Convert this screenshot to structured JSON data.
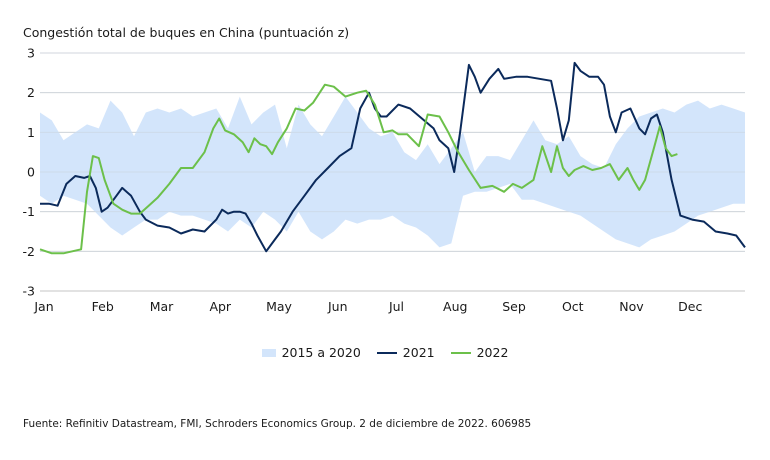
{
  "chart_data": {
    "type": "line",
    "title": "Congestión total de buques en China (puntuación z)",
    "source": "Fuente: Refinitiv Datastream, FMI, Schroders Economics Group. 2 de diciembre de 2022. 606985",
    "xlabel": "",
    "ylabel": "",
    "ylim": [
      -3,
      3
    ],
    "yticks": [
      "3",
      "2",
      "1",
      "0",
      "-1",
      "-2",
      "-3"
    ],
    "ytick_values": [
      3,
      2,
      1,
      0,
      -1,
      -2,
      -3
    ],
    "xticks": [
      "Jan",
      "Feb",
      "Mar",
      "Apr",
      "May",
      "Jun",
      "Jul",
      "Aug",
      "Sep",
      "Oct",
      "Nov",
      "Dec"
    ],
    "grid": true,
    "legend_position": "bottom",
    "colors": {
      "band": "#d3e5fb",
      "y2021": "#0b2a5b",
      "y2022": "#6cc04a",
      "grid": "#d9d9d9"
    },
    "band": {
      "name": "2015 a 2020",
      "x": [
        0,
        0.2,
        0.4,
        0.6,
        0.8,
        1.0,
        1.2,
        1.4,
        1.6,
        1.8,
        2.0,
        2.2,
        2.4,
        2.6,
        2.8,
        3.0,
        3.2,
        3.4,
        3.6,
        3.8,
        4.0,
        4.2,
        4.4,
        4.6,
        4.8,
        5.0,
        5.2,
        5.4,
        5.6,
        5.8,
        6.0,
        6.2,
        6.4,
        6.6,
        6.8,
        7.0,
        7.2,
        7.4,
        7.6,
        7.8,
        8.0,
        8.2,
        8.4,
        8.6,
        8.8,
        9.0,
        9.2,
        9.4,
        9.6,
        9.8,
        10.0,
        10.2,
        10.4,
        10.6,
        10.8,
        11.0,
        11.2,
        11.4,
        11.6,
        11.8,
        12.0
      ],
      "upper": [
        1.5,
        1.3,
        0.8,
        1.0,
        1.2,
        1.1,
        1.8,
        1.5,
        0.9,
        1.5,
        1.6,
        1.5,
        1.6,
        1.4,
        1.5,
        1.6,
        1.1,
        1.9,
        1.2,
        1.5,
        1.7,
        0.6,
        1.7,
        1.2,
        0.9,
        1.4,
        1.9,
        1.5,
        1.1,
        0.9,
        1.0,
        0.5,
        0.3,
        0.7,
        0.2,
        0.6,
        1.0,
        0.0,
        0.4,
        0.4,
        0.3,
        0.8,
        1.3,
        0.8,
        0.7,
        0.9,
        0.4,
        0.2,
        0.1,
        0.7,
        1.1,
        1.4,
        1.5,
        1.6,
        1.5,
        1.7,
        1.8,
        1.6,
        1.7,
        1.6,
        1.5
      ],
      "lower": [
        -0.6,
        -0.8,
        -0.6,
        -0.7,
        -0.8,
        -1.1,
        -1.4,
        -1.6,
        -1.4,
        -1.2,
        -1.2,
        -1.0,
        -1.1,
        -1.1,
        -1.2,
        -1.3,
        -1.5,
        -1.2,
        -1.4,
        -1.0,
        -1.2,
        -1.5,
        -1.0,
        -1.5,
        -1.7,
        -1.5,
        -1.2,
        -1.3,
        -1.2,
        -1.2,
        -1.1,
        -1.3,
        -1.4,
        -1.6,
        -1.9,
        -1.8,
        -0.6,
        -0.5,
        -0.5,
        -0.4,
        -0.3,
        -0.7,
        -0.7,
        -0.8,
        -0.9,
        -1.0,
        -1.1,
        -1.3,
        -1.5,
        -1.7,
        -1.8,
        -1.9,
        -1.7,
        -1.6,
        -1.5,
        -1.3,
        -1.1,
        -1.0,
        -0.9,
        -0.8,
        -0.8
      ]
    },
    "series": [
      {
        "name": "2021",
        "x": [
          0,
          0.15,
          0.3,
          0.45,
          0.6,
          0.75,
          0.85,
          0.95,
          1.05,
          1.15,
          1.3,
          1.4,
          1.55,
          1.7,
          1.8,
          2.0,
          2.2,
          2.4,
          2.6,
          2.8,
          3.0,
          3.1,
          3.2,
          3.3,
          3.4,
          3.5,
          3.6,
          3.7,
          3.85,
          4.0,
          4.1,
          4.3,
          4.5,
          4.7,
          4.9,
          5.1,
          5.3,
          5.45,
          5.6,
          5.7,
          5.8,
          5.9,
          6.1,
          6.3,
          6.5,
          6.7,
          6.8,
          6.95,
          7.05,
          7.15,
          7.3,
          7.4,
          7.5,
          7.65,
          7.8,
          7.9,
          8.1,
          8.3,
          8.5,
          8.7,
          8.8,
          8.9,
          9.0,
          9.1,
          9.2,
          9.35,
          9.5,
          9.6,
          9.7,
          9.8,
          9.9,
          10.05,
          10.2,
          10.3,
          10.4,
          10.5,
          10.6,
          10.75,
          10.9,
          11.1,
          11.3,
          11.5,
          11.7,
          11.85,
          12.0
        ],
        "values": [
          -0.8,
          -0.8,
          -0.85,
          -0.3,
          -0.1,
          -0.15,
          -0.1,
          -0.4,
          -1.0,
          -0.9,
          -0.6,
          -0.4,
          -0.6,
          -1.0,
          -1.2,
          -1.35,
          -1.4,
          -1.55,
          -1.45,
          -1.5,
          -1.2,
          -0.95,
          -1.05,
          -1.0,
          -1.0,
          -1.05,
          -1.3,
          -1.6,
          -2.0,
          -1.7,
          -1.5,
          -1.0,
          -0.6,
          -0.2,
          0.1,
          0.4,
          0.6,
          1.6,
          2.0,
          1.6,
          1.4,
          1.4,
          1.7,
          1.6,
          1.35,
          1.1,
          0.8,
          0.6,
          0.0,
          1.0,
          2.7,
          2.4,
          2.0,
          2.35,
          2.6,
          2.35,
          2.4,
          2.4,
          2.35,
          2.3,
          1.6,
          0.8,
          1.3,
          2.75,
          2.55,
          2.4,
          2.4,
          2.2,
          1.4,
          1.0,
          1.5,
          1.6,
          1.1,
          0.95,
          1.35,
          1.45,
          1.0,
          -0.2,
          -1.1,
          -1.2,
          -1.25,
          -1.5,
          -1.55,
          -1.6,
          -1.9
        ]
      },
      {
        "name": "2022",
        "x": [
          0,
          0.2,
          0.4,
          0.55,
          0.7,
          0.8,
          0.9,
          1.0,
          1.1,
          1.25,
          1.4,
          1.55,
          1.7,
          1.85,
          2.0,
          2.2,
          2.4,
          2.6,
          2.8,
          2.95,
          3.05,
          3.15,
          3.3,
          3.45,
          3.55,
          3.65,
          3.75,
          3.85,
          3.95,
          4.05,
          4.2,
          4.35,
          4.5,
          4.65,
          4.85,
          5.0,
          5.2,
          5.4,
          5.55,
          5.7,
          5.85,
          6.0,
          6.1,
          6.25,
          6.45,
          6.6,
          6.8,
          6.95,
          7.1,
          7.3,
          7.5,
          7.7,
          7.9,
          8.05,
          8.2,
          8.4,
          8.55,
          8.7,
          8.8,
          8.9,
          9.0,
          9.1,
          9.25,
          9.4,
          9.55,
          9.7,
          9.85,
          10.0,
          10.1,
          10.2,
          10.3,
          10.45,
          10.55,
          10.65,
          10.75,
          10.85
        ],
        "values": [
          -1.95,
          -2.05,
          -2.05,
          -2.0,
          -1.95,
          -0.5,
          0.4,
          0.35,
          -0.2,
          -0.8,
          -0.95,
          -1.05,
          -1.05,
          -0.85,
          -0.65,
          -0.3,
          0.1,
          0.1,
          0.5,
          1.1,
          1.35,
          1.05,
          0.95,
          0.75,
          0.5,
          0.85,
          0.7,
          0.65,
          0.45,
          0.75,
          1.1,
          1.6,
          1.55,
          1.75,
          2.2,
          2.15,
          1.9,
          2.0,
          2.05,
          1.7,
          1.0,
          1.05,
          0.95,
          0.95,
          0.65,
          1.45,
          1.4,
          1.0,
          0.55,
          0.05,
          -0.4,
          -0.35,
          -0.5,
          -0.3,
          -0.4,
          -0.2,
          0.65,
          0.0,
          0.65,
          0.1,
          -0.1,
          0.05,
          0.15,
          0.05,
          0.1,
          0.2,
          -0.2,
          0.1,
          -0.2,
          -0.45,
          -0.2,
          0.6,
          1.15,
          0.6,
          0.4,
          0.45
        ]
      }
    ]
  }
}
